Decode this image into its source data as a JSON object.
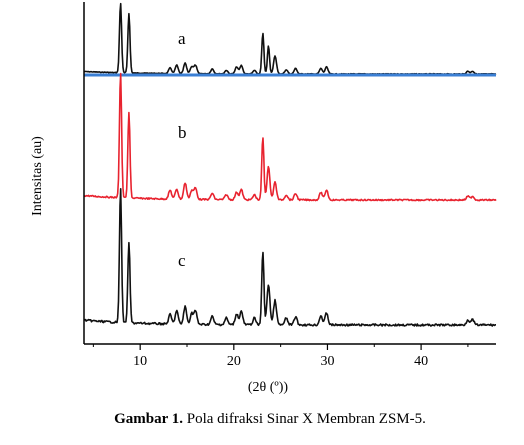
{
  "chart_data": {
    "type": "line",
    "xlabel": "(2θ (º))",
    "ylabel": "Intensitas (au)",
    "xlim": [
      4,
      48
    ],
    "x_ticks": [
      10,
      20,
      30,
      40
    ],
    "grid": false,
    "series": [
      {
        "name": "a",
        "color": "#111111",
        "baseline_color": "#3b7fd4",
        "peaks": [
          [
            7.9,
            1.0
          ],
          [
            8.8,
            0.85
          ],
          [
            13.2,
            0.08
          ],
          [
            13.9,
            0.12
          ],
          [
            14.8,
            0.15
          ],
          [
            15.5,
            0.1
          ],
          [
            15.9,
            0.12
          ],
          [
            17.7,
            0.07
          ],
          [
            19.2,
            0.05
          ],
          [
            20.3,
            0.1
          ],
          [
            20.8,
            0.12
          ],
          [
            22.2,
            0.05
          ],
          [
            23.1,
            0.58
          ],
          [
            23.7,
            0.4
          ],
          [
            24.4,
            0.26
          ],
          [
            25.6,
            0.06
          ],
          [
            26.6,
            0.08
          ],
          [
            29.3,
            0.08
          ],
          [
            29.9,
            0.1
          ],
          [
            45.0,
            0.04
          ],
          [
            45.5,
            0.04
          ]
        ]
      },
      {
        "name": "b",
        "color": "#e8232f",
        "peaks": [
          [
            7.9,
            1.0
          ],
          [
            8.8,
            0.68
          ],
          [
            13.2,
            0.07
          ],
          [
            13.9,
            0.08
          ],
          [
            14.8,
            0.13
          ],
          [
            15.5,
            0.07
          ],
          [
            15.9,
            0.09
          ],
          [
            17.7,
            0.05
          ],
          [
            19.2,
            0.04
          ],
          [
            20.3,
            0.06
          ],
          [
            20.8,
            0.08
          ],
          [
            22.2,
            0.04
          ],
          [
            23.1,
            0.5
          ],
          [
            23.7,
            0.26
          ],
          [
            24.4,
            0.14
          ],
          [
            25.6,
            0.04
          ],
          [
            26.6,
            0.05
          ],
          [
            29.3,
            0.06
          ],
          [
            29.9,
            0.08
          ],
          [
            45.0,
            0.03
          ],
          [
            45.5,
            0.03
          ]
        ]
      },
      {
        "name": "c",
        "color": "#111111",
        "peaks": [
          [
            7.9,
            1.0
          ],
          [
            8.8,
            0.6
          ],
          [
            13.2,
            0.07
          ],
          [
            13.9,
            0.1
          ],
          [
            14.8,
            0.13
          ],
          [
            15.5,
            0.08
          ],
          [
            15.9,
            0.1
          ],
          [
            17.7,
            0.06
          ],
          [
            19.2,
            0.05
          ],
          [
            20.3,
            0.08
          ],
          [
            20.8,
            0.1
          ],
          [
            22.2,
            0.05
          ],
          [
            23.1,
            0.55
          ],
          [
            23.7,
            0.3
          ],
          [
            24.4,
            0.18
          ],
          [
            25.6,
            0.05
          ],
          [
            26.6,
            0.06
          ],
          [
            29.3,
            0.07
          ],
          [
            29.9,
            0.09
          ],
          [
            45.0,
            0.04
          ],
          [
            45.5,
            0.04
          ]
        ]
      }
    ]
  },
  "caption": {
    "label": "Gambar 1.",
    "text": " Pola difraksi Sinar X Membran ZSM-5."
  }
}
